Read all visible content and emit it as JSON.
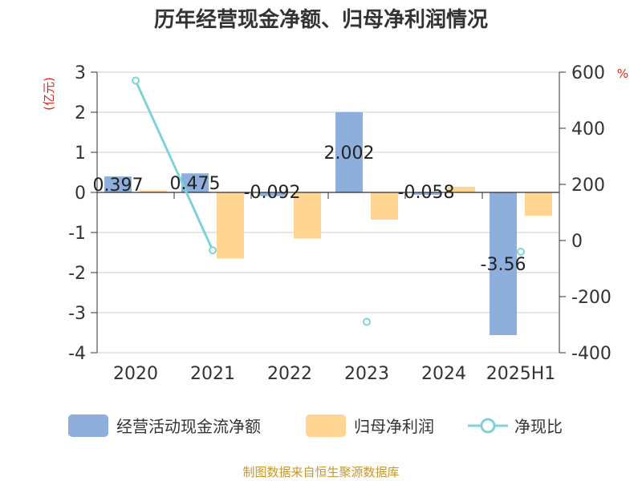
{
  "chart_data": {
    "type": "bar",
    "title": "历年经营现金净额、归母净利润情况",
    "categories": [
      "2020",
      "2021",
      "2022",
      "2023",
      "2024",
      "2025H1"
    ],
    "left_axis": {
      "label": "(亿元)",
      "ylim": [
        -4,
        3
      ],
      "ticks": [
        "3",
        "2",
        "1",
        "0",
        "-1",
        "-2",
        "-3",
        "-4"
      ]
    },
    "right_axis": {
      "label": "%",
      "ylim": [
        -400,
        600
      ],
      "ticks": [
        "600",
        "400",
        "200",
        "0",
        "-200",
        "-400"
      ]
    },
    "series": [
      {
        "name": "经营活动现金流净额",
        "type": "bar",
        "axis": "left",
        "color": "#8eaedb",
        "values": [
          0.397,
          0.475,
          -0.092,
          2.002,
          -0.058,
          -3.56
        ],
        "labels": [
          "0.397",
          "0.475",
          "-0.092",
          "2.002",
          "-0.058",
          "-3.56"
        ]
      },
      {
        "name": "归母净利润",
        "type": "bar",
        "axis": "left",
        "color": "#ffd591",
        "values": [
          0.05,
          -1.65,
          -1.15,
          -0.68,
          0.14,
          -0.58
        ]
      },
      {
        "name": "净现比",
        "type": "line",
        "axis": "right",
        "color": "#7fd3d8",
        "values": [
          570,
          -35,
          null,
          -290,
          null,
          -40
        ]
      }
    ],
    "grid": true,
    "legend_position": "bottom"
  },
  "source": "制图数据来自恒生聚源数据库"
}
